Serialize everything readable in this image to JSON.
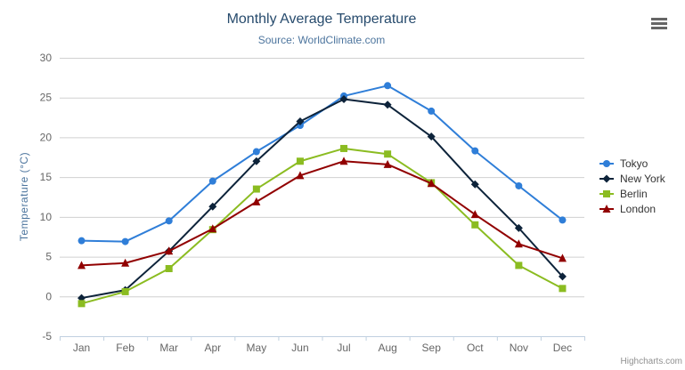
{
  "chart": {
    "credits": "Highcharts.com",
    "export_menu_icon": "hamburger-icon"
  },
  "chart_data": {
    "type": "line",
    "title": "Monthly Average Temperature",
    "subtitle": "Source: WorldClimate.com",
    "xlabel": "",
    "ylabel": "Temperature (°C)",
    "categories": [
      "Jan",
      "Feb",
      "Mar",
      "Apr",
      "May",
      "Jun",
      "Jul",
      "Aug",
      "Sep",
      "Oct",
      "Nov",
      "Dec"
    ],
    "yticks": [
      -5,
      0,
      5,
      10,
      15,
      20,
      25,
      30
    ],
    "ylim": [
      -5,
      30
    ],
    "grid": true,
    "legend_position": "right",
    "colors": {
      "grid_line": "#d0d0d0",
      "axis_line": "#c0d0e0",
      "axis_label": "#666666",
      "title": "#274b6d",
      "subtitle": "#4d759e"
    },
    "series": [
      {
        "name": "Tokyo",
        "color": "#2f7ed8",
        "marker": "circle",
        "values": [
          7.0,
          6.9,
          9.5,
          14.5,
          18.2,
          21.5,
          25.2,
          26.5,
          23.3,
          18.3,
          13.9,
          9.6
        ]
      },
      {
        "name": "New York",
        "color": "#0d233a",
        "marker": "diamond",
        "values": [
          -0.2,
          0.8,
          5.7,
          11.3,
          17.0,
          22.0,
          24.8,
          24.1,
          20.1,
          14.1,
          8.6,
          2.5
        ]
      },
      {
        "name": "Berlin",
        "color": "#8bbc21",
        "marker": "square",
        "values": [
          -0.9,
          0.6,
          3.5,
          8.4,
          13.5,
          17.0,
          18.6,
          17.9,
          14.3,
          9.0,
          3.9,
          1.0
        ]
      },
      {
        "name": "London",
        "color": "#910000",
        "marker": "triangle",
        "values": [
          3.9,
          4.2,
          5.7,
          8.5,
          11.9,
          15.2,
          17.0,
          16.6,
          14.2,
          10.3,
          6.6,
          4.8
        ]
      }
    ]
  }
}
